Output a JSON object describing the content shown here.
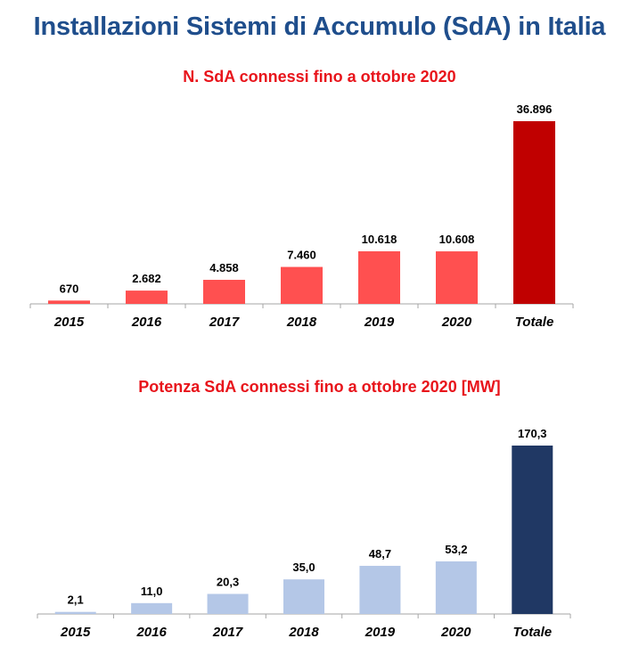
{
  "page": {
    "title": "Installazioni Sistemi di Accumulo (SdA)  in Italia"
  },
  "colors": {
    "title": "#1f4e8c",
    "chart_title": "#e8141b"
  },
  "chart_data": [
    {
      "type": "bar",
      "title": "N. SdA connessi fino a ottobre 2020",
      "categories": [
        "2015",
        "2016",
        "2017",
        "2018",
        "2019",
        "2020",
        "Totale"
      ],
      "values": [
        670,
        2682,
        4858,
        7460,
        10618,
        10608,
        36896
      ],
      "value_labels": [
        "670",
        "2.682",
        "4.858",
        "7.460",
        "10.618",
        "10.608",
        "36.896"
      ],
      "colors": [
        "#ff5050",
        "#ff5050",
        "#ff5050",
        "#ff5050",
        "#ff5050",
        "#ff5050",
        "#c00000"
      ],
      "ylim": [
        0,
        36896
      ],
      "xlabel": "",
      "ylabel": "",
      "grid": false,
      "legend": "none"
    },
    {
      "type": "bar",
      "title": "Potenza SdA connessi fino a ottobre 2020 [MW]",
      "categories": [
        "2015",
        "2016",
        "2017",
        "2018",
        "2019",
        "2020",
        "Totale"
      ],
      "values": [
        2.1,
        11.0,
        20.3,
        35.0,
        48.7,
        53.2,
        170.3
      ],
      "value_labels": [
        "2,1",
        "11,0",
        "20,3",
        "35,0",
        "48,7",
        "53,2",
        "170,3"
      ],
      "colors": [
        "#b4c7e7",
        "#b4c7e7",
        "#b4c7e7",
        "#b4c7e7",
        "#b4c7e7",
        "#b4c7e7",
        "#203864"
      ],
      "ylim": [
        0,
        170.3
      ],
      "xlabel": "",
      "ylabel": "",
      "grid": false,
      "legend": "none"
    }
  ]
}
